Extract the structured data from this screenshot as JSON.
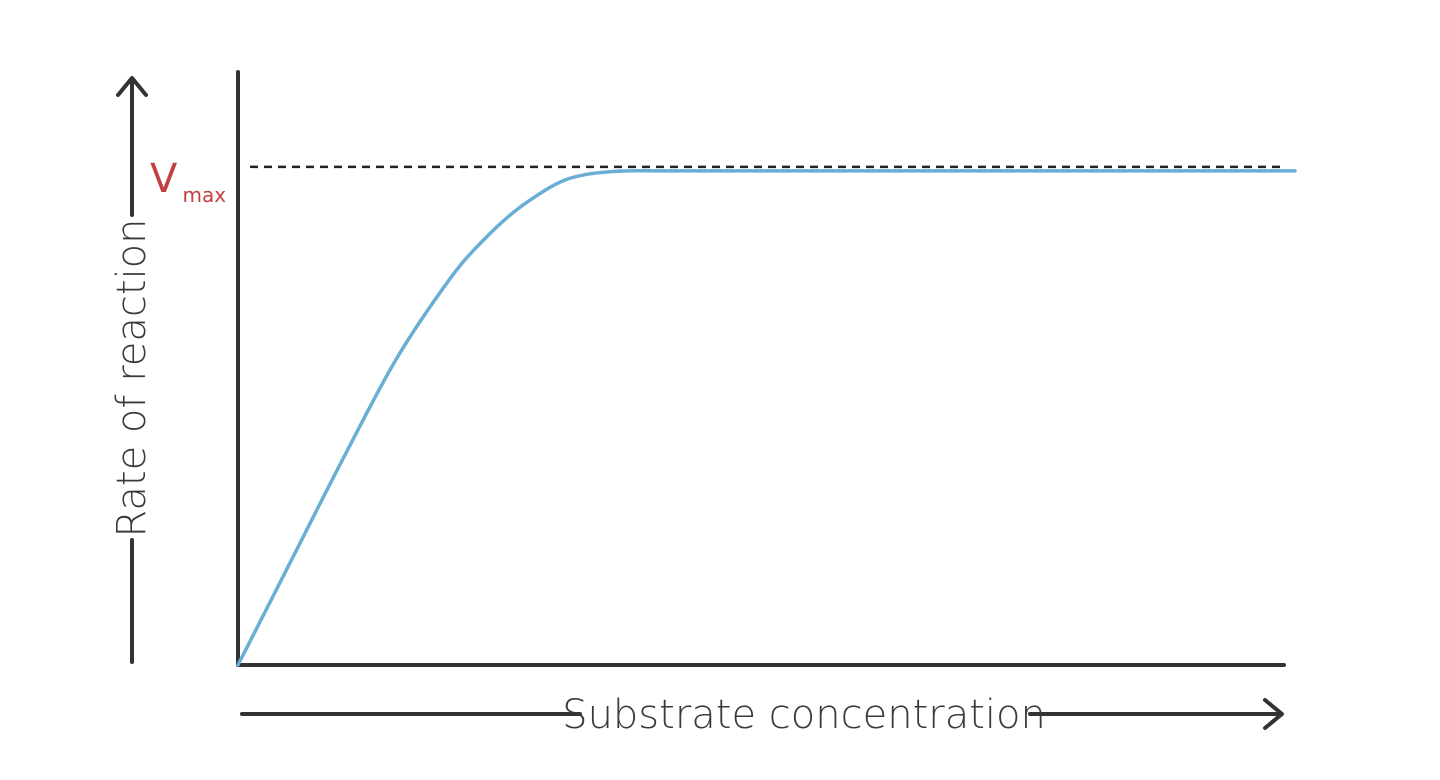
{
  "chart_data": {
    "type": "line",
    "title": "",
    "xlabel": "Substrate concentration",
    "ylabel": "Rate of reaction",
    "grid": false,
    "legend": "none",
    "annotations": [
      {
        "text": "V",
        "subscript": "max",
        "color": "#c0413f",
        "refers_to": "dashed horizontal line at y = 1.0"
      }
    ],
    "xlim": [
      0,
      10
    ],
    "ylim": [
      0,
      1.2
    ],
    "series": [
      {
        "color": "#6aaed6",
        "x": [
          0,
          0.5,
          1.0,
          1.5,
          2.0,
          2.3,
          2.6,
          2.9,
          3.1,
          3.3,
          3.5,
          3.7,
          4.0,
          5.0,
          6.0,
          7.0,
          8.0,
          9.0,
          10.0
        ],
        "y": [
          0,
          0.21,
          0.42,
          0.62,
          0.78,
          0.855,
          0.915,
          0.96,
          0.982,
          0.993,
          0.998,
          1.0,
          1.0,
          1.0,
          1.0,
          1.0,
          1.0,
          1.0,
          1.0
        ]
      }
    ],
    "reference_line": {
      "y": 1.0,
      "style": "dashed",
      "color": "#222222"
    }
  }
}
